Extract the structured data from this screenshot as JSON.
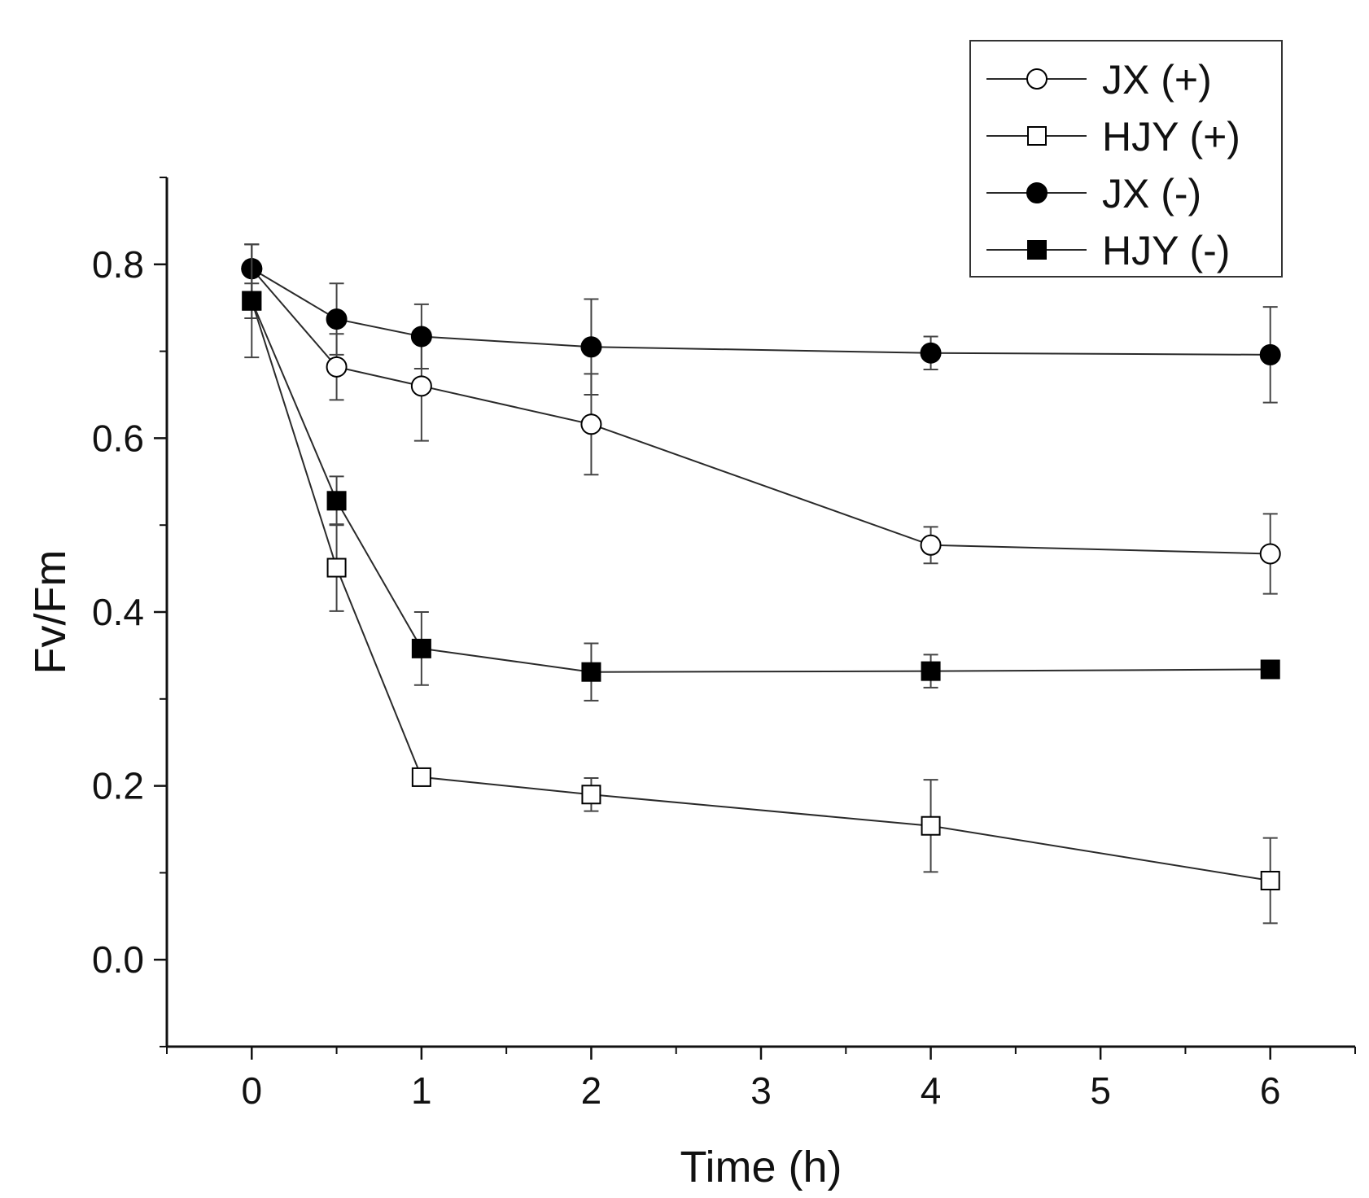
{
  "chart_data": {
    "type": "line",
    "title": "",
    "xlabel": "Time (h)",
    "ylabel": "Fv/Fm",
    "xlim": [
      -0.5,
      6.5
    ],
    "ylim": [
      -0.1,
      0.9
    ],
    "xticks": [
      0,
      1,
      2,
      3,
      4,
      5,
      6
    ],
    "xtick_labels": [
      "0",
      "1",
      "2",
      "3",
      "4",
      "5",
      "6"
    ],
    "yticks": [
      0.0,
      0.2,
      0.4,
      0.6,
      0.8
    ],
    "ytick_labels": [
      "0.0",
      "0.2",
      "0.4",
      "0.6",
      "0.8"
    ],
    "x": [
      0,
      0.5,
      1,
      2,
      4,
      6
    ],
    "legend_position": "top-right",
    "grid": false,
    "series": [
      {
        "name": "JX (+)",
        "marker": "circle",
        "filled": false,
        "values": [
          0.795,
          0.682,
          0.66,
          0.616,
          0.477,
          0.467
        ],
        "errors": [
          0.028,
          0.038,
          0.063,
          0.058,
          0.021,
          0.046
        ]
      },
      {
        "name": "HJY (+)",
        "marker": "square",
        "filled": false,
        "values": [
          0.758,
          0.451,
          0.21,
          0.19,
          0.154,
          0.091
        ],
        "errors": [
          0.02,
          0.05,
          0.01,
          0.019,
          0.053,
          0.049
        ]
      },
      {
        "name": "JX (-)",
        "marker": "circle",
        "filled": true,
        "values": [
          0.795,
          0.737,
          0.717,
          0.705,
          0.698,
          0.696
        ],
        "errors": [
          0.028,
          0.041,
          0.037,
          0.055,
          0.019,
          0.055
        ]
      },
      {
        "name": "HJY (-)",
        "marker": "square",
        "filled": true,
        "values": [
          0.758,
          0.528,
          0.358,
          0.331,
          0.332,
          0.334
        ],
        "errors": [
          0.065,
          0.028,
          0.042,
          0.033,
          0.019,
          0.01
        ]
      }
    ]
  },
  "colors": {
    "line": "#2a2a2a",
    "marker_fill": "#000000",
    "marker_hollow": "#ffffff",
    "axis": "#111111"
  }
}
